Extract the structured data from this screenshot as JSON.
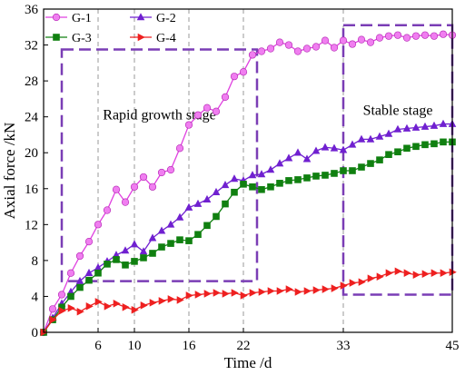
{
  "chart_data": {
    "type": "line",
    "xlabel": "Time /d",
    "ylabel": "Axial force /kN",
    "xlim": [
      0,
      45
    ],
    "ylim": [
      0,
      36
    ],
    "xticks": [
      6,
      10,
      16,
      22,
      33,
      45
    ],
    "yticks": [
      0,
      4,
      8,
      12,
      16,
      20,
      24,
      28,
      32,
      36
    ],
    "xtick_labels": [
      "6",
      "10",
      "16",
      "22",
      "33",
      "45"
    ],
    "ytick_labels": [
      "0",
      "4",
      "8",
      "12",
      "16",
      "20",
      "24",
      "28",
      "32",
      "36"
    ],
    "grid": "vertical dashed at x ticks",
    "legend": {
      "position": "top-left",
      "columns": 2
    },
    "annotations": [
      {
        "text": "Rapid growth stage",
        "x_range": [
          2,
          23.5
        ],
        "y_range": [
          5.7,
          31.5
        ]
      },
      {
        "text": "Stable stage",
        "x_range": [
          33,
          45
        ],
        "y_range": [
          4.2,
          34.2
        ]
      }
    ],
    "series": [
      {
        "name": "G-1",
        "color": "#e040e0",
        "marker": "circle",
        "x": [
          0,
          1,
          2,
          3,
          4,
          5,
          6,
          7,
          8,
          9,
          10,
          11,
          12,
          13,
          14,
          15,
          16,
          17,
          18,
          19,
          20,
          21,
          22,
          23,
          24,
          25,
          26,
          27,
          28,
          29,
          30,
          31,
          32,
          33,
          34,
          35,
          36,
          37,
          38,
          39,
          40,
          41,
          42,
          43,
          44,
          45
        ],
        "y": [
          0,
          2.6,
          4.2,
          6.6,
          8.5,
          10.1,
          12.0,
          13.6,
          15.9,
          14.5,
          16.2,
          17.3,
          16.2,
          17.8,
          18.1,
          20.5,
          23.1,
          24.2,
          25.0,
          24.6,
          26.2,
          28.5,
          29.0,
          30.9,
          31.3,
          31.6,
          32.3,
          32.0,
          31.3,
          31.6,
          31.8,
          32.5,
          31.7,
          32.5,
          32.1,
          32.6,
          32.3,
          32.8,
          33.0,
          33.1,
          32.8,
          33.0,
          33.1,
          33.0,
          33.2,
          33.1
        ]
      },
      {
        "name": "G-2",
        "color": "#7020d0",
        "marker": "triangle-up",
        "x": [
          0,
          1,
          2,
          3,
          4,
          5,
          6,
          7,
          8,
          9,
          10,
          11,
          12,
          13,
          14,
          15,
          16,
          17,
          18,
          19,
          20,
          21,
          22,
          23,
          24,
          25,
          26,
          27,
          28,
          29,
          30,
          31,
          32,
          33,
          34,
          35,
          36,
          37,
          38,
          39,
          40,
          41,
          42,
          43,
          44,
          45
        ],
        "y": [
          0,
          1.6,
          3.2,
          4.5,
          5.7,
          6.6,
          7.2,
          7.9,
          8.6,
          9.1,
          9.8,
          9.0,
          10.5,
          11.3,
          12.0,
          12.8,
          13.9,
          14.3,
          14.8,
          15.6,
          16.4,
          17.1,
          16.9,
          17.5,
          17.6,
          18.1,
          18.8,
          19.4,
          20.0,
          19.3,
          20.2,
          20.6,
          20.5,
          20.3,
          20.9,
          21.5,
          21.5,
          21.8,
          22.1,
          22.6,
          22.7,
          22.8,
          22.9,
          23.0,
          23.2,
          23.2
        ]
      },
      {
        "name": "G-3",
        "color": "#108010",
        "marker": "square",
        "x": [
          0,
          1,
          2,
          3,
          4,
          5,
          6,
          7,
          8,
          9,
          10,
          11,
          12,
          13,
          14,
          15,
          16,
          17,
          18,
          19,
          20,
          21,
          22,
          23,
          24,
          25,
          26,
          27,
          28,
          29,
          30,
          31,
          32,
          33,
          34,
          35,
          36,
          37,
          38,
          39,
          40,
          41,
          42,
          43,
          44,
          45
        ],
        "y": [
          0,
          1.4,
          2.8,
          4.0,
          5.0,
          5.8,
          6.6,
          7.6,
          8.1,
          7.5,
          7.9,
          8.3,
          8.8,
          9.5,
          9.9,
          10.3,
          10.2,
          10.9,
          11.9,
          12.9,
          14.3,
          15.6,
          16.5,
          16.2,
          15.9,
          16.2,
          16.6,
          16.9,
          17.0,
          17.2,
          17.4,
          17.5,
          17.7,
          18.0,
          18.0,
          18.4,
          18.8,
          19.2,
          19.8,
          20.1,
          20.5,
          20.7,
          20.9,
          21.0,
          21.2,
          21.2
        ]
      },
      {
        "name": "G-4",
        "color": "#ee2020",
        "marker": "triangle-right",
        "x": [
          0,
          1,
          2,
          3,
          4,
          5,
          6,
          7,
          8,
          9,
          10,
          11,
          12,
          13,
          14,
          15,
          16,
          17,
          18,
          19,
          20,
          21,
          22,
          23,
          24,
          25,
          26,
          27,
          28,
          29,
          30,
          31,
          32,
          33,
          34,
          35,
          36,
          37,
          38,
          39,
          40,
          41,
          42,
          43,
          44,
          45
        ],
        "y": [
          0,
          1.4,
          2.4,
          2.7,
          2.3,
          2.9,
          3.4,
          2.9,
          3.2,
          2.8,
          2.5,
          3.0,
          3.3,
          3.5,
          3.7,
          3.6,
          4.1,
          4.2,
          4.3,
          4.4,
          4.3,
          4.4,
          4.1,
          4.4,
          4.5,
          4.6,
          4.6,
          4.8,
          4.5,
          4.6,
          4.7,
          4.8,
          4.9,
          5.2,
          5.5,
          5.6,
          6.0,
          6.2,
          6.6,
          6.8,
          6.6,
          6.4,
          6.5,
          6.6,
          6.6,
          6.7
        ]
      }
    ]
  }
}
